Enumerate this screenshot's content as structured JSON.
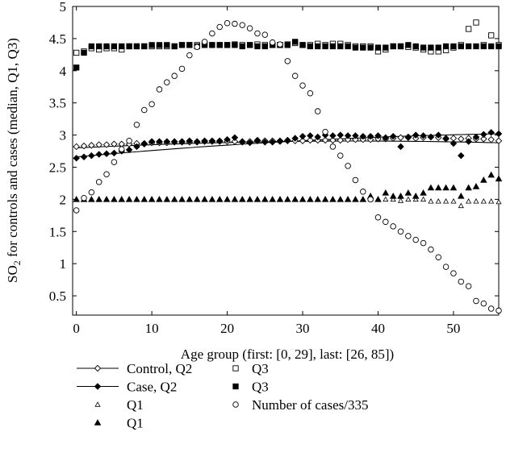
{
  "chart_data": {
    "type": "scatter",
    "title": "",
    "xlabel": "Age group (first: [0, 29], last: [26, 85])",
    "ylabel_parts": [
      "SO",
      "2",
      " for controls and cases (median, Q1, Q3)"
    ],
    "xlim": [
      -0.5,
      56
    ],
    "ylim": [
      0.2,
      5
    ],
    "x_ticks": [
      0,
      10,
      20,
      30,
      40,
      50
    ],
    "y_ticks": [
      0.5,
      1,
      1.5,
      2,
      2.5,
      3,
      3.5,
      4,
      4.5,
      5
    ],
    "x_tick_labels": [
      "0",
      "10",
      "20",
      "30",
      "40",
      "50"
    ],
    "y_tick_labels": [
      "0.5",
      "1",
      "1.5",
      "2",
      "2.5",
      "3",
      "3.5",
      "4",
      "4.5",
      "5"
    ],
    "legend_position": "below",
    "series": [
      {
        "name": "Control, Q2",
        "marker": "diamond-open",
        "line": true,
        "fit_line": [
          2.8,
          2.9,
          2.88
        ],
        "values": [
          2.82,
          2.83,
          2.84,
          2.85,
          2.85,
          2.86,
          2.86,
          2.86,
          2.87,
          2.87,
          2.88,
          2.88,
          2.88,
          2.89,
          2.89,
          2.89,
          2.89,
          2.9,
          2.9,
          2.9,
          2.9,
          2.9,
          2.9,
          2.9,
          2.91,
          2.91,
          2.91,
          2.91,
          2.91,
          2.91,
          2.91,
          2.92,
          2.92,
          2.92,
          2.92,
          2.92,
          2.93,
          2.93,
          2.93,
          2.93,
          2.94,
          2.94,
          2.95,
          2.96,
          2.96,
          2.95,
          2.96,
          2.97,
          2.96,
          2.95,
          2.95,
          2.94,
          2.95,
          2.94,
          2.94,
          2.93,
          2.91
        ]
      },
      {
        "name": "Case, Q2",
        "marker": "diamond-filled",
        "line": true,
        "fit_line": [
          2.66,
          2.9,
          3.02
        ],
        "values": [
          2.64,
          2.66,
          2.68,
          2.7,
          2.71,
          2.72,
          2.75,
          2.77,
          2.82,
          2.86,
          2.9,
          2.9,
          2.9,
          2.9,
          2.9,
          2.91,
          2.9,
          2.91,
          2.91,
          2.91,
          2.93,
          2.96,
          2.89,
          2.88,
          2.92,
          2.89,
          2.89,
          2.9,
          2.92,
          2.95,
          2.98,
          2.99,
          2.97,
          3.0,
          2.99,
          3.0,
          2.99,
          2.99,
          2.98,
          2.98,
          2.99,
          2.96,
          2.98,
          2.82,
          2.97,
          3.0,
          2.99,
          2.97,
          3.0,
          2.94,
          2.87,
          2.68,
          2.9,
          2.97,
          3.01,
          3.04,
          3.02
        ]
      },
      {
        "name": "Q1",
        "marker": "triangle-open",
        "values": [
          2.0,
          2.0,
          2.0,
          2.0,
          2.0,
          2.0,
          2.0,
          2.0,
          2.0,
          2.0,
          2.0,
          2.0,
          2.0,
          2.0,
          2.0,
          2.0,
          2.0,
          2.0,
          2.0,
          2.0,
          2.0,
          2.0,
          2.0,
          2.0,
          2.0,
          2.0,
          2.0,
          2.0,
          2.0,
          2.0,
          2.0,
          2.0,
          2.0,
          2.0,
          2.0,
          2.0,
          2.0,
          2.0,
          2.0,
          2.0,
          2.0,
          2.0,
          2.0,
          1.98,
          2.0,
          2.0,
          2.0,
          1.97,
          1.97,
          1.97,
          1.97,
          1.9,
          1.97,
          1.97,
          1.97,
          1.97,
          1.96
        ]
      },
      {
        "name": "Q1",
        "marker": "triangle-filled",
        "values": [
          2.0,
          2.0,
          2.0,
          2.0,
          2.0,
          2.0,
          2.0,
          2.0,
          2.0,
          2.0,
          2.0,
          2.0,
          2.0,
          2.0,
          2.0,
          2.0,
          2.0,
          2.0,
          2.0,
          2.0,
          2.0,
          2.0,
          2.0,
          2.0,
          2.0,
          2.0,
          2.0,
          2.0,
          2.0,
          2.0,
          2.0,
          2.0,
          2.0,
          2.0,
          2.0,
          2.0,
          2.0,
          2.0,
          2.0,
          2.05,
          2.0,
          2.1,
          2.05,
          2.05,
          2.1,
          2.05,
          2.1,
          2.18,
          2.18,
          2.18,
          2.18,
          2.05,
          2.18,
          2.2,
          2.3,
          2.38,
          2.32
        ]
      },
      {
        "name": "Q3",
        "marker": "square-open",
        "values": [
          4.28,
          4.3,
          4.35,
          4.33,
          4.35,
          4.35,
          4.33,
          4.38,
          4.38,
          4.38,
          4.38,
          4.38,
          4.38,
          4.38,
          4.4,
          4.4,
          4.4,
          4.42,
          4.4,
          4.4,
          4.4,
          4.41,
          4.4,
          4.4,
          4.41,
          4.4,
          4.4,
          4.4,
          4.41,
          4.43,
          4.4,
          4.4,
          4.42,
          4.4,
          4.42,
          4.42,
          4.4,
          4.38,
          4.38,
          4.38,
          4.3,
          4.33,
          4.38,
          4.38,
          4.37,
          4.36,
          4.33,
          4.3,
          4.3,
          4.32,
          4.36,
          4.4,
          4.65,
          4.75,
          4.4,
          4.55,
          4.4
        ]
      },
      {
        "name": "Q3",
        "marker": "square-filled",
        "values": [
          4.05,
          4.28,
          4.38,
          4.38,
          4.38,
          4.38,
          4.38,
          4.38,
          4.38,
          4.38,
          4.4,
          4.4,
          4.4,
          4.38,
          4.4,
          4.4,
          4.38,
          4.4,
          4.4,
          4.4,
          4.4,
          4.4,
          4.38,
          4.4,
          4.38,
          4.38,
          4.4,
          4.4,
          4.4,
          4.45,
          4.4,
          4.38,
          4.38,
          4.38,
          4.38,
          4.38,
          4.38,
          4.36,
          4.36,
          4.36,
          4.36,
          4.36,
          4.38,
          4.38,
          4.4,
          4.38,
          4.36,
          4.36,
          4.36,
          4.38,
          4.38,
          4.38,
          4.38,
          4.38,
          4.38,
          4.38,
          4.38
        ]
      },
      {
        "name": "Number of cases/335",
        "marker": "circle-open",
        "values": [
          1.83,
          2.02,
          2.11,
          2.27,
          2.39,
          2.58,
          2.78,
          2.91,
          3.16,
          3.39,
          3.48,
          3.71,
          3.82,
          3.92,
          4.03,
          4.24,
          4.37,
          4.45,
          4.58,
          4.68,
          4.74,
          4.73,
          4.71,
          4.66,
          4.58,
          4.56,
          4.44,
          4.41,
          4.15,
          3.92,
          3.77,
          3.65,
          3.37,
          3.05,
          2.82,
          2.68,
          2.52,
          2.3,
          2.12,
          2.0,
          1.72,
          1.65,
          1.58,
          1.5,
          1.43,
          1.37,
          1.32,
          1.22,
          1.1,
          0.95,
          0.85,
          0.72,
          0.65,
          0.42,
          0.38,
          0.3,
          0.27
        ]
      }
    ]
  }
}
